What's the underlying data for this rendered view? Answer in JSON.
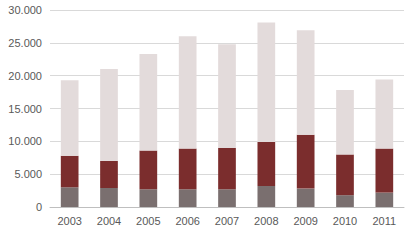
{
  "chart_data": {
    "type": "bar",
    "stacked": true,
    "grid": true,
    "categories": [
      "2003",
      "2004",
      "2005",
      "2006",
      "2007",
      "2008",
      "2009",
      "2010",
      "2011"
    ],
    "series": [
      {
        "color": "#7a6f6f",
        "values": [
          3000,
          2900,
          2700,
          2700,
          2700,
          3200,
          2800,
          1800,
          2200
        ]
      },
      {
        "color": "#7b2d2d",
        "values": [
          4800,
          4100,
          5900,
          6200,
          6300,
          6700,
          8200,
          6200,
          6700
        ]
      },
      {
        "color": "#e3dbdb",
        "values": [
          11500,
          14000,
          14700,
          17100,
          15800,
          18200,
          15900,
          9800,
          10500
        ]
      }
    ],
    "ylim": [
      0,
      30000
    ],
    "yticks": [
      0,
      {
        "value": 5000,
        "label": "5.000"
      },
      {
        "value": 10000,
        "label": "10.000"
      },
      {
        "value": 15000,
        "label": "15.000"
      },
      {
        "value": 20000,
        "label": "20.000"
      },
      {
        "value": 25000,
        "label": "25.000"
      },
      {
        "value": 30000,
        "label": "30.000"
      }
    ]
  }
}
